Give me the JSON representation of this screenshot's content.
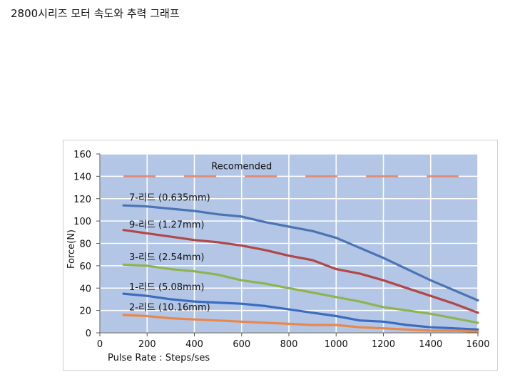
{
  "page": {
    "title": "2800시리즈 모터 속도와 추력 그래프"
  },
  "chart_data": {
    "type": "line",
    "xlabel": "Pulse Rate : Steps/ses",
    "ylabel": "Force(N)",
    "xlim": [
      0,
      1600
    ],
    "ylim": [
      0,
      160
    ],
    "xticks": [
      "0",
      "200",
      "400",
      "600",
      "800",
      "1000",
      "1200",
      "1400",
      "1600"
    ],
    "yticks": [
      "0",
      "20",
      "40",
      "60",
      "80",
      "100",
      "120",
      "140",
      "160"
    ],
    "grid": true,
    "plot_bg": "#b3c6e6",
    "recommended": {
      "label": "Recomended",
      "y": 140,
      "color": "#e08e7a"
    },
    "x": [
      100,
      200,
      300,
      400,
      500,
      600,
      700,
      800,
      900,
      1000,
      1100,
      1200,
      1300,
      1400,
      1500,
      1600
    ],
    "series": [
      {
        "name": "7-리드 (0.635mm)",
        "color": "#4a74b4",
        "values": [
          114,
          113,
          111,
          109,
          106,
          104,
          99,
          95,
          91,
          85,
          76,
          67,
          57,
          47,
          38,
          29
        ]
      },
      {
        "name": "9-리드 (1.27mm)",
        "color": "#b04848",
        "values": [
          92,
          89,
          86,
          83,
          81,
          78,
          74,
          69,
          65,
          57,
          53,
          47,
          40,
          33,
          26,
          18
        ]
      },
      {
        "name": "3-리드 (2.54mm)",
        "color": "#8eb450",
        "values": [
          61,
          60,
          57,
          55,
          52,
          47,
          44,
          40,
          36,
          32,
          28,
          23,
          20,
          17,
          13,
          9
        ]
      },
      {
        "name": "1-리드 (5.08mm)",
        "color": "#3a6cc0",
        "values": [
          35,
          33,
          30,
          28,
          27,
          26,
          24,
          21,
          18,
          15,
          11,
          10,
          7,
          5,
          4,
          3
        ]
      },
      {
        "name": "2-리드 (10.16mm)",
        "color": "#e8884a",
        "values": [
          16,
          15,
          13,
          12,
          11,
          10,
          9,
          8,
          7,
          7,
          5,
          4,
          3,
          2,
          2,
          1
        ]
      }
    ]
  }
}
